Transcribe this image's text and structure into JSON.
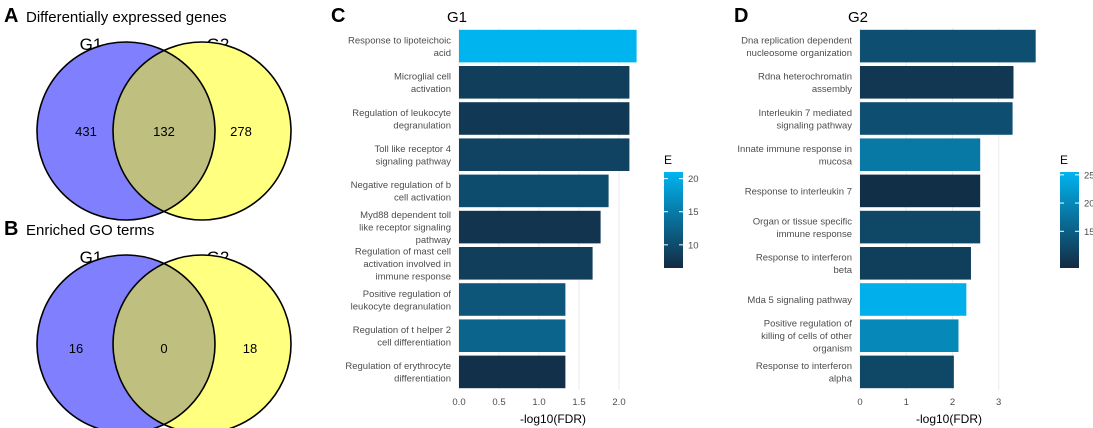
{
  "panels": {
    "a": {
      "letter": "A",
      "title": "Differentially expressed genes",
      "left_label": "G1",
      "right_label": "G2",
      "left_only": "431",
      "overlap": "132",
      "right_only": "278"
    },
    "b": {
      "letter": "B",
      "title": "Enriched GO terms",
      "left_label": "G1",
      "right_label": "G2",
      "left_only": "16",
      "overlap": "0",
      "right_only": "18"
    },
    "c": {
      "letter": "C"
    },
    "d": {
      "letter": "D"
    }
  },
  "colors": {
    "venn_left": "#8080ff",
    "venn_right": "#ffff80",
    "venn_overlap": "#bfbf80",
    "venn_stroke": "#000000",
    "gradient_low": "#132b43",
    "gradient_high": "#00b4f0"
  },
  "chart_data": [
    {
      "type": "bar",
      "orientation": "horizontal",
      "title": "G1",
      "xlabel": "-log10(FDR)",
      "ylabel": "",
      "xlim": [
        0,
        2.35
      ],
      "xticks": [
        0,
        0.5,
        1.0,
        1.5,
        2.0
      ],
      "xtick_labels": [
        "0.0",
        "0.5",
        "1.0",
        "1.5",
        "2.0"
      ],
      "categories": [
        [
          "Response to lipoteichoic",
          "acid"
        ],
        [
          "Microglial cell",
          "activation"
        ],
        [
          "Regulation of leukocyte",
          "degranulation"
        ],
        [
          "Toll like receptor 4",
          "signaling pathway"
        ],
        [
          "Negative regulation of b",
          "cell activation"
        ],
        [
          "Myd88 dependent toll",
          "like receptor signaling",
          "pathway"
        ],
        [
          "Regulation of mast cell",
          "activation involved in",
          "immune response"
        ],
        [
          "Positive regulation of",
          "leukocyte degranulation"
        ],
        [
          "Regulation of t helper 2",
          "cell differentiation"
        ],
        [
          "Regulation of erythrocyte",
          "differentiation"
        ]
      ],
      "values": [
        2.22,
        2.13,
        2.13,
        2.13,
        1.87,
        1.77,
        1.67,
        1.33,
        1.33,
        1.33
      ],
      "fill_E": [
        21,
        8.5,
        8,
        9,
        10,
        7.5,
        8.5,
        11,
        12.5,
        7
      ],
      "legend": {
        "title": "E",
        "min": 6.5,
        "max": 21,
        "ticks": [
          10,
          15,
          20
        ],
        "tick_labels": [
          "10",
          "15",
          "20"
        ],
        "position": "right"
      }
    },
    {
      "type": "bar",
      "orientation": "horizontal",
      "title": "G2",
      "xlabel": "-log10(FDR)",
      "ylabel": "",
      "xlim": [
        0,
        3.85
      ],
      "xticks": [
        0,
        1,
        2,
        3
      ],
      "xtick_labels": [
        "0",
        "1",
        "2",
        "3"
      ],
      "categories": [
        [
          "Dna replication dependent",
          "nucleosome organization"
        ],
        [
          "Rdna heterochromatin",
          "assembly"
        ],
        [
          "Interleukin 7 mediated",
          "signaling pathway"
        ],
        [
          "Innate immune response in",
          "mucosa"
        ],
        [
          "Response to interleukin 7"
        ],
        [
          "Organ or tissue specific",
          "immune response"
        ],
        [
          "Response to interferon",
          "beta"
        ],
        [
          "Mda 5 signaling pathway"
        ],
        [
          "Positive regulation of",
          "killing of cells of other",
          "organism"
        ],
        [
          "Response to interferon",
          "alpha"
        ]
      ],
      "values": [
        3.8,
        3.32,
        3.3,
        2.6,
        2.6,
        2.6,
        2.4,
        2.3,
        2.13,
        2.03
      ],
      "fill_E": [
        13,
        10,
        13,
        18,
        9,
        12,
        11,
        25,
        20,
        12
      ],
      "legend": {
        "title": "E",
        "min": 8.5,
        "max": 25.5,
        "ticks": [
          15,
          20,
          25
        ],
        "tick_labels": [
          "15",
          "20",
          "25"
        ],
        "position": "right"
      }
    }
  ]
}
